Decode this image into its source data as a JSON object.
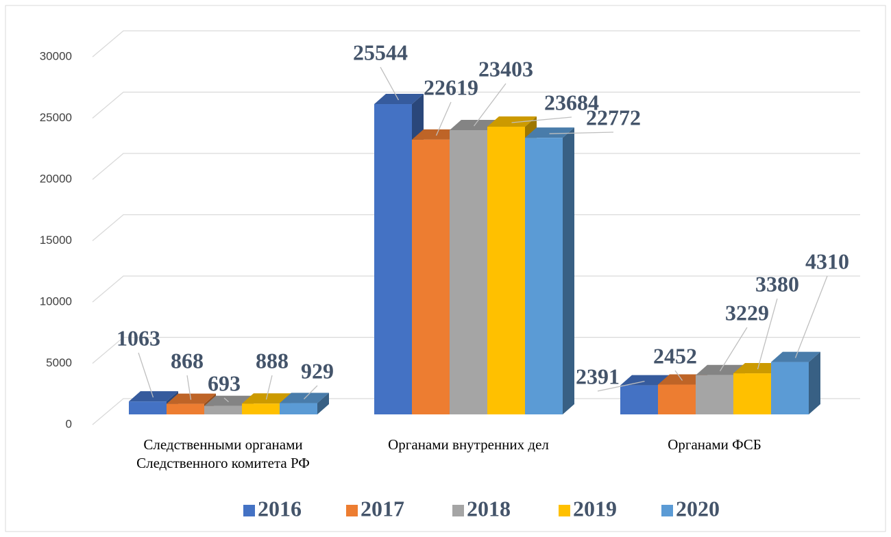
{
  "chart_data": {
    "type": "bar3d",
    "categories": [
      "Следственными органами Следственного комитета РФ",
      "Органами внутренних дел",
      "Органами ФСБ"
    ],
    "series": [
      {
        "name": "2016",
        "color": "#4472c4",
        "values": [
          1063,
          25544,
          2391
        ]
      },
      {
        "name": "2017",
        "color": "#ed7d31",
        "values": [
          868,
          22619,
          2452
        ]
      },
      {
        "name": "2018",
        "color": "#a5a5a5",
        "values": [
          693,
          23403,
          3229
        ]
      },
      {
        "name": "2019",
        "color": "#ffc000",
        "values": [
          888,
          23684,
          3380
        ]
      },
      {
        "name": "2020",
        "color": "#5b9bd5",
        "values": [
          929,
          22772,
          4310
        ]
      }
    ],
    "ylim": [
      0,
      30000
    ],
    "yticks": [
      0,
      5000,
      10000,
      15000,
      20000,
      25000,
      30000
    ],
    "grid": true,
    "legend": "bottom"
  }
}
